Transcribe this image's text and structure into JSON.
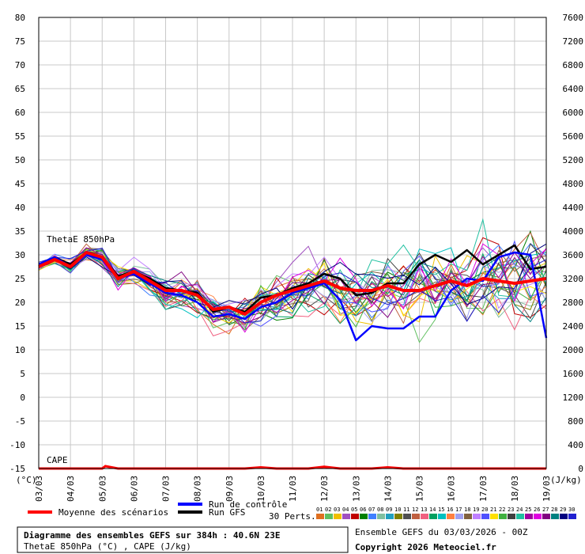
{
  "chart_data": {
    "type": "line",
    "title": "Diagramme des ensembles GEFS sur 384h : 40.6N 23E",
    "subtitle": "ThetaE 850hPa (°C) , CAPE (J/kg)",
    "run_label": "Ensemble GEFS du 03/03/2026 - 00Z",
    "copyright": "Copyright 2026 Meteociel.fr",
    "left_unit": "(°C)",
    "right_unit": "(J/kg)",
    "label_thetae": "ThetaE 850hPa",
    "label_cape": "CAPE",
    "ylim_left": [
      -15,
      80
    ],
    "ylim_right": [
      0,
      7600
    ],
    "y_ticks_left": [
      -15,
      -10,
      -5,
      0,
      5,
      10,
      15,
      20,
      25,
      30,
      35,
      40,
      45,
      50,
      55,
      60,
      65,
      70,
      75,
      80
    ],
    "y_ticks_right": [
      0,
      400,
      800,
      1200,
      1600,
      2000,
      2400,
      2800,
      3200,
      3600,
      4000,
      4400,
      4800,
      5200,
      5600,
      6000,
      6400,
      6800,
      7200,
      7600
    ],
    "x_ticks": [
      "03/03",
      "04/03",
      "05/03",
      "06/03",
      "07/03",
      "08/03",
      "09/03",
      "10/03",
      "11/03",
      "12/03",
      "13/03",
      "14/03",
      "15/03",
      "16/03",
      "17/03",
      "18/03",
      "19/03"
    ],
    "x_range_days": [
      0,
      16
    ],
    "grid": true,
    "legend": {
      "mean": "Moyenne des scénarios",
      "control": "Run de contrôle",
      "gfs": "Run GFS",
      "perts": "30 Perts.",
      "pert_ids": [
        "01",
        "02",
        "03",
        "04",
        "05",
        "06",
        "07",
        "08",
        "09",
        "10",
        "11",
        "12",
        "13",
        "14",
        "15",
        "16",
        "17",
        "18",
        "19",
        "20",
        "21",
        "22",
        "23",
        "24",
        "25",
        "26",
        "27",
        "28",
        "29",
        "30"
      ],
      "pert_colors": [
        "#e07020",
        "#60c060",
        "#f0c000",
        "#a050c0",
        "#c00000",
        "#008000",
        "#4080ff",
        "#80c0a0",
        "#20a0c0",
        "#808000",
        "#505050",
        "#c06040",
        "#f06080",
        "#00a060",
        "#00c0c0",
        "#ff8040",
        "#a0a0f0",
        "#806040",
        "#c080ff",
        "#5050ff",
        "#ffe000",
        "#40b040",
        "#404040",
        "#20c0a0",
        "#a000a0",
        "#e000e0",
        "#800080",
        "#008080",
        "#000080",
        "#2020d0"
      ]
    },
    "series": [
      {
        "name": "Moyenne des scénarios",
        "color": "#ff0000",
        "x": [
          0,
          0.5,
          1,
          1.5,
          2,
          2.5,
          3,
          3.5,
          4,
          4.5,
          5,
          5.5,
          6,
          6.5,
          7,
          7.5,
          8,
          8.5,
          9,
          9.5,
          10,
          10.5,
          11,
          11.5,
          12,
          12.5,
          13,
          13.5,
          14,
          14.5,
          15,
          15.5,
          16
        ],
        "y": [
          27.5,
          29,
          27.5,
          30.5,
          29.5,
          25,
          26.5,
          24.5,
          22.5,
          22.5,
          21.5,
          18.5,
          19,
          17.5,
          20,
          21.5,
          22.5,
          23.5,
          24.5,
          23,
          22.5,
          22.5,
          23.5,
          22.5,
          22.5,
          23.5,
          24.5,
          23.5,
          25,
          24.5,
          24,
          24.5,
          25
        ]
      },
      {
        "name": "Run de contrôle",
        "color": "#0000ff",
        "x": [
          0,
          0.5,
          1,
          1.5,
          2,
          2.5,
          3,
          3.5,
          4,
          4.5,
          5,
          5.5,
          6,
          6.5,
          7,
          7.5,
          8,
          8.5,
          9,
          9.5,
          10,
          10.5,
          11,
          11.5,
          12,
          12.5,
          13,
          13.5,
          14,
          14.5,
          15,
          15.5,
          16
        ],
        "y": [
          28,
          29.5,
          27.5,
          30,
          29,
          25,
          26,
          24,
          22,
          21.5,
          20,
          17,
          17.5,
          16.5,
          19,
          20,
          22,
          23,
          24,
          20.5,
          12,
          15,
          14.5,
          14.5,
          17,
          17,
          22.5,
          25,
          24.5,
          29.5,
          30.5,
          30,
          12.5
        ]
      },
      {
        "name": "Run GFS",
        "color": "#000000",
        "x": [
          0,
          0.5,
          1,
          1.5,
          2,
          2.5,
          3,
          3.5,
          4,
          4.5,
          5,
          5.5,
          6,
          6.5,
          7,
          7.5,
          8,
          8.5,
          9,
          9.5,
          10,
          10.5,
          11,
          11.5,
          12,
          12.5,
          13,
          13.5,
          14,
          14.5,
          15,
          15.5,
          16
        ],
        "y": [
          28,
          29.5,
          28,
          30.5,
          29.5,
          25.5,
          26.5,
          25,
          23,
          22.5,
          22,
          18,
          19,
          18,
          21,
          21.5,
          23,
          24,
          26,
          25,
          21.5,
          22,
          24,
          24,
          28,
          30,
          28.5,
          31,
          28,
          30,
          32,
          27,
          27.5
        ]
      }
    ],
    "cape_series": {
      "name": "CAPE",
      "unit": "J/kg",
      "x": [
        0,
        0.5,
        1,
        1.5,
        2,
        2.1,
        2.5,
        3,
        3.5,
        4,
        4.5,
        5,
        5.5,
        6,
        6.5,
        7,
        7.5,
        8,
        8.5,
        9,
        9.5,
        10,
        10.5,
        11,
        11.5,
        12,
        12.5,
        13,
        13.5,
        14,
        14.5,
        15,
        15.5,
        16
      ],
      "y": [
        0,
        0,
        0,
        0,
        0,
        40,
        0,
        0,
        0,
        0,
        0,
        0,
        0,
        0,
        0,
        20,
        0,
        0,
        0,
        30,
        0,
        0,
        0,
        20,
        0,
        0,
        0,
        0,
        0,
        0,
        0,
        0,
        0,
        0
      ]
    }
  }
}
